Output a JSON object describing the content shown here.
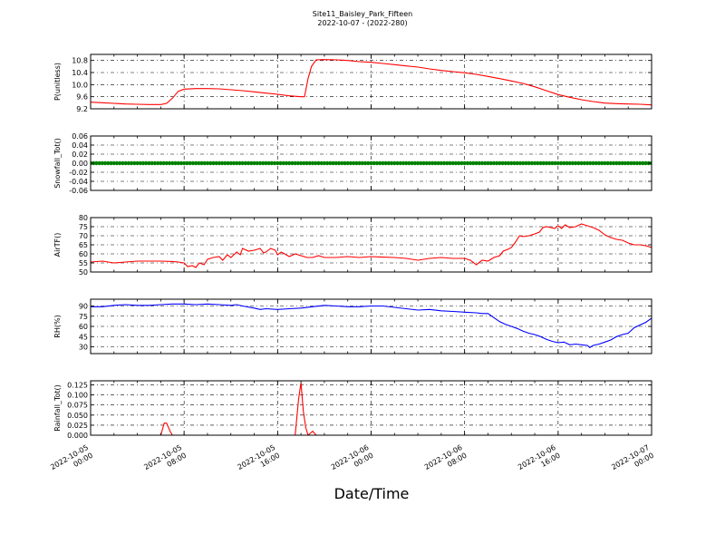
{
  "figure": {
    "title": "Site11_Baisley_Park_Fifteen",
    "subtitle": "2022-10-07 - (2022-280)",
    "xlabel": "Date/Time",
    "x_ticks": [
      {
        "t": 0,
        "l1": "2022-10-05",
        "l2": "00:00"
      },
      {
        "t": 8,
        "l1": "2022-10-05",
        "l2": "08:00"
      },
      {
        "t": 16,
        "l1": "2022-10-05",
        "l2": "16:00"
      },
      {
        "t": 24,
        "l1": "2022-10-06",
        "l2": "00:00"
      },
      {
        "t": 32,
        "l1": "2022-10-06",
        "l2": "08:00"
      },
      {
        "t": 40,
        "l1": "2022-10-06",
        "l2": "16:00"
      },
      {
        "t": 48,
        "l1": "2022-10-07",
        "l2": "00:00"
      }
    ]
  },
  "chart_data": [
    {
      "type": "line",
      "ylabel": "P(unitless)",
      "ylim": [
        9.2,
        11.0
      ],
      "yticks": [
        9.2,
        9.6,
        10.0,
        10.4,
        10.8
      ],
      "tick_decimals": 1,
      "color": "#ff0000",
      "grid": true,
      "x_unit": "hours since 2022-10-05 00:00",
      "points": [
        [
          0,
          9.42
        ],
        [
          1,
          9.4
        ],
        [
          2,
          9.38
        ],
        [
          3,
          9.36
        ],
        [
          4,
          9.35
        ],
        [
          5,
          9.34
        ],
        [
          6,
          9.34
        ],
        [
          6.5,
          9.38
        ],
        [
          7,
          9.55
        ],
        [
          7.5,
          9.78
        ],
        [
          8,
          9.85
        ],
        [
          9,
          9.87
        ],
        [
          10,
          9.87
        ],
        [
          11,
          9.86
        ],
        [
          12,
          9.83
        ],
        [
          13,
          9.8
        ],
        [
          14,
          9.76
        ],
        [
          15,
          9.72
        ],
        [
          16,
          9.68
        ],
        [
          17,
          9.63
        ],
        [
          18,
          9.6
        ],
        [
          18.3,
          9.6
        ],
        [
          18.6,
          10.2
        ],
        [
          18.9,
          10.6
        ],
        [
          19.3,
          10.82
        ],
        [
          20,
          10.83
        ],
        [
          21,
          10.82
        ],
        [
          22,
          10.8
        ],
        [
          23,
          10.76
        ],
        [
          24,
          10.74
        ],
        [
          25,
          10.7
        ],
        [
          26,
          10.66
        ],
        [
          27,
          10.62
        ],
        [
          28,
          10.58
        ],
        [
          29,
          10.52
        ],
        [
          30,
          10.47
        ],
        [
          31,
          10.43
        ],
        [
          32,
          10.39
        ],
        [
          33,
          10.34
        ],
        [
          34,
          10.27
        ],
        [
          35,
          10.2
        ],
        [
          36,
          10.12
        ],
        [
          37,
          10.04
        ],
        [
          38,
          9.93
        ],
        [
          39,
          9.8
        ],
        [
          40,
          9.67
        ],
        [
          41,
          9.58
        ],
        [
          42,
          9.5
        ],
        [
          43,
          9.44
        ],
        [
          44,
          9.39
        ],
        [
          45,
          9.37
        ],
        [
          46,
          9.36
        ],
        [
          47,
          9.35
        ],
        [
          48,
          9.33
        ]
      ]
    },
    {
      "type": "scatter",
      "ylabel": "Snowfall_Tot()",
      "ylim": [
        -0.06,
        0.06
      ],
      "yticks": [
        -0.06,
        -0.04,
        -0.02,
        0.0,
        0.02,
        0.04,
        0.06
      ],
      "tick_decimals": 2,
      "color": "#008000",
      "grid": true,
      "x_unit": "hours since 2022-10-05 00:00",
      "constant_value": 0.0,
      "x_range": [
        0,
        48
      ],
      "step_hours": 0.25
    },
    {
      "type": "line",
      "ylabel": "AirTF()",
      "ylim": [
        50,
        80
      ],
      "yticks": [
        50,
        55,
        60,
        65,
        70,
        75,
        80
      ],
      "tick_decimals": 0,
      "color": "#ff0000",
      "grid": true,
      "x_unit": "hours since 2022-10-05 00:00",
      "points": [
        [
          0,
          55.5
        ],
        [
          1,
          56
        ],
        [
          2,
          55
        ],
        [
          3,
          55.5
        ],
        [
          4,
          56
        ],
        [
          5,
          56
        ],
        [
          6,
          56
        ],
        [
          7,
          55.8
        ],
        [
          7.5,
          55.5
        ],
        [
          8,
          55
        ],
        [
          8.3,
          53
        ],
        [
          8.7,
          53.5
        ],
        [
          9,
          52.5
        ],
        [
          9.3,
          55
        ],
        [
          9.7,
          54
        ],
        [
          10,
          57
        ],
        [
          10.5,
          58
        ],
        [
          11,
          58.5
        ],
        [
          11.3,
          56.5
        ],
        [
          11.7,
          59.5
        ],
        [
          12,
          58
        ],
        [
          12.5,
          61
        ],
        [
          12.8,
          59.5
        ],
        [
          13,
          63
        ],
        [
          13.5,
          61.5
        ],
        [
          14,
          62
        ],
        [
          14.5,
          63
        ],
        [
          14.8,
          60.5
        ],
        [
          15,
          61
        ],
        [
          15.4,
          63
        ],
        [
          15.8,
          62
        ],
        [
          16,
          59.5
        ],
        [
          16.3,
          61
        ],
        [
          16.6,
          60
        ],
        [
          17,
          58.5
        ],
        [
          17.5,
          60
        ],
        [
          18,
          59
        ],
        [
          18.5,
          58
        ],
        [
          19,
          58
        ],
        [
          19.5,
          59
        ],
        [
          20,
          58
        ],
        [
          21,
          58
        ],
        [
          22,
          58.5
        ],
        [
          23,
          58
        ],
        [
          24,
          58.5
        ],
        [
          25,
          58.2
        ],
        [
          26,
          58
        ],
        [
          27,
          57.5
        ],
        [
          28,
          56.5
        ],
        [
          29,
          57.5
        ],
        [
          30,
          58
        ],
        [
          31,
          57.5
        ],
        [
          32,
          57.5
        ],
        [
          32.5,
          56.5
        ],
        [
          33,
          54
        ],
        [
          33.5,
          56.5
        ],
        [
          34,
          56
        ],
        [
          34.5,
          58
        ],
        [
          35,
          59
        ],
        [
          35.3,
          61.5
        ],
        [
          35.7,
          62.5
        ],
        [
          36,
          63.5
        ],
        [
          36.3,
          66
        ],
        [
          36.7,
          70
        ],
        [
          37,
          69.5
        ],
        [
          37.5,
          70
        ],
        [
          38,
          71
        ],
        [
          38.4,
          72
        ],
        [
          38.7,
          74.5
        ],
        [
          39,
          75
        ],
        [
          39.4,
          74.5
        ],
        [
          39.7,
          74
        ],
        [
          40,
          75.5
        ],
        [
          40.3,
          74
        ],
        [
          40.6,
          76
        ],
        [
          41,
          74.5
        ],
        [
          41.5,
          75
        ],
        [
          42,
          76.5
        ],
        [
          42.5,
          75.5
        ],
        [
          43,
          74.5
        ],
        [
          43.5,
          73
        ],
        [
          44,
          70.5
        ],
        [
          44.5,
          69
        ],
        [
          45,
          68
        ],
        [
          45.5,
          67.5
        ],
        [
          46,
          66
        ],
        [
          46.5,
          65
        ],
        [
          47,
          65
        ],
        [
          47.5,
          64.5
        ],
        [
          48,
          63.5
        ]
      ]
    },
    {
      "type": "line",
      "ylabel": "RH(%)",
      "ylim": [
        20,
        100
      ],
      "yticks": [
        30,
        45,
        60,
        75,
        90
      ],
      "tick_decimals": 0,
      "color": "#0000ff",
      "grid": true,
      "x_unit": "hours since 2022-10-05 00:00",
      "points": [
        [
          0,
          89
        ],
        [
          1,
          89
        ],
        [
          2,
          91
        ],
        [
          3,
          92
        ],
        [
          4,
          91
        ],
        [
          5,
          91
        ],
        [
          6,
          92
        ],
        [
          7,
          93
        ],
        [
          8,
          93
        ],
        [
          9,
          92
        ],
        [
          10,
          93
        ],
        [
          11,
          92
        ],
        [
          12,
          91
        ],
        [
          12.5,
          92
        ],
        [
          13,
          90
        ],
        [
          14,
          87
        ],
        [
          14.5,
          85
        ],
        [
          15,
          86
        ],
        [
          16,
          85
        ],
        [
          17,
          86
        ],
        [
          18,
          87
        ],
        [
          19,
          89
        ],
        [
          20,
          91
        ],
        [
          21,
          90
        ],
        [
          22,
          89
        ],
        [
          23,
          89
        ],
        [
          24,
          90
        ],
        [
          25,
          90
        ],
        [
          26,
          88
        ],
        [
          27,
          86
        ],
        [
          28,
          84
        ],
        [
          29,
          85
        ],
        [
          30,
          83
        ],
        [
          31,
          82
        ],
        [
          32,
          81
        ],
        [
          33,
          80
        ],
        [
          33.5,
          79
        ],
        [
          34,
          79
        ],
        [
          34.5,
          73
        ],
        [
          35,
          67
        ],
        [
          35.5,
          63
        ],
        [
          36,
          60
        ],
        [
          36.5,
          57
        ],
        [
          37,
          53
        ],
        [
          37.5,
          50
        ],
        [
          38,
          48
        ],
        [
          38.5,
          45
        ],
        [
          39,
          41
        ],
        [
          39.5,
          38
        ],
        [
          40,
          36
        ],
        [
          40.5,
          37
        ],
        [
          41,
          33
        ],
        [
          41.5,
          34
        ],
        [
          42,
          33
        ],
        [
          42.5,
          32
        ],
        [
          42.7,
          29
        ],
        [
          43,
          32
        ],
        [
          43.5,
          34
        ],
        [
          44,
          37
        ],
        [
          44.5,
          40
        ],
        [
          45,
          45
        ],
        [
          45.5,
          48
        ],
        [
          46,
          50
        ],
        [
          46.5,
          58
        ],
        [
          47,
          62
        ],
        [
          47.5,
          66
        ],
        [
          48,
          72
        ]
      ]
    },
    {
      "type": "line",
      "ylabel": "Rainfall_Tot()",
      "ylim": [
        0,
        0.135
      ],
      "yticks": [
        0.0,
        0.025,
        0.05,
        0.075,
        0.1,
        0.125
      ],
      "tick_decimals": 3,
      "color": "#ff0000",
      "grid": true,
      "x_unit": "hours since 2022-10-05 00:00",
      "points": [
        [
          0,
          0
        ],
        [
          6,
          0
        ],
        [
          6.3,
          0.03
        ],
        [
          6.5,
          0.03
        ],
        [
          6.8,
          0.01
        ],
        [
          7,
          0
        ],
        [
          17.5,
          0
        ],
        [
          17.8,
          0.09
        ],
        [
          18,
          0.13
        ],
        [
          18.2,
          0.06
        ],
        [
          18.4,
          0.02
        ],
        [
          18.6,
          0
        ],
        [
          19,
          0.01
        ],
        [
          19.3,
          0
        ],
        [
          48,
          0
        ]
      ]
    }
  ]
}
